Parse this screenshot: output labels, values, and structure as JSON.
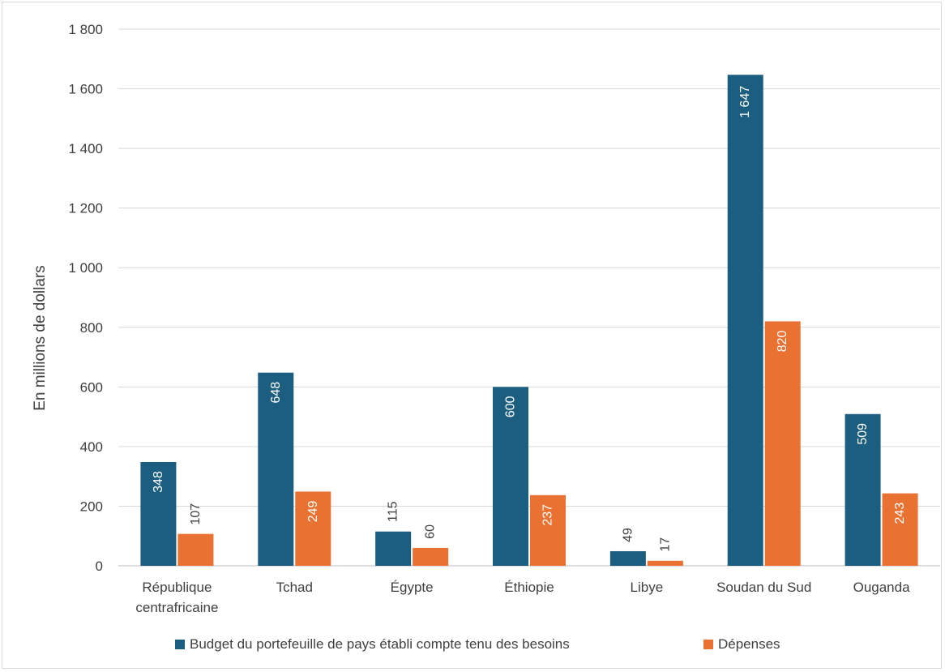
{
  "chart_data": {
    "type": "bar",
    "title": "",
    "xlabel": "",
    "ylabel": "En millions de dollars",
    "ylim": [
      0,
      1800
    ],
    "yticks": [
      0,
      200,
      400,
      600,
      800,
      1000,
      1200,
      1400,
      1600,
      1800
    ],
    "ytick_labels": [
      "0",
      "200",
      "400",
      "600",
      "800",
      "1 000",
      "1 200",
      "1 400",
      "1 600",
      "1 800"
    ],
    "grid": true,
    "legend_position": "bottom",
    "categories": [
      [
        "République",
        "centrafricaine"
      ],
      [
        "Tchad"
      ],
      [
        "Égypte"
      ],
      [
        "Éthiopie"
      ],
      [
        "Libye"
      ],
      [
        "Soudan du Sud"
      ],
      [
        "Ouganda"
      ]
    ],
    "series": [
      {
        "name": "Budget du portefeuille de pays établi compte tenu des besoins",
        "color": "#1b5e80",
        "values": [
          348,
          648,
          115,
          600,
          49,
          1647,
          509
        ],
        "labels": [
          "348",
          "648",
          "115",
          "600",
          "49",
          "1 647",
          "509"
        ]
      },
      {
        "name": "Dépenses",
        "color": "#e97132",
        "values": [
          107,
          249,
          60,
          237,
          17,
          820,
          243
        ],
        "labels": [
          "107",
          "249",
          "60",
          "237",
          "17",
          "820",
          "243"
        ]
      }
    ],
    "colors": {
      "gridline": "#d9d9d9",
      "axis": "#bfbfbf",
      "text": "#404040",
      "label_inside": "#ffffff",
      "label_outside": "#404040"
    }
  }
}
